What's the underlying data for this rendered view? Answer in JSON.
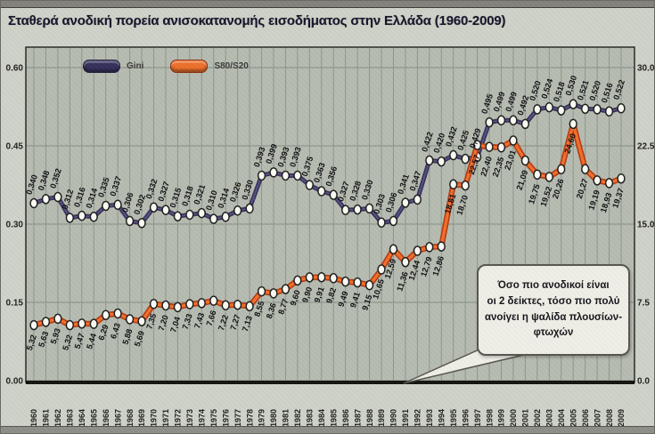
{
  "title": "Σταθερά ανοδική πορεία ανισοκατανομής εισοδήματος στην Ελλάδα (1960-2009)",
  "legend": {
    "gini_label": "Gini",
    "s80s20_label": "S80/S20"
  },
  "annotation": {
    "lines": {
      "0": "Όσο πιο ανοδικοί είναι",
      "1": "οι 2 δείκτες, τόσο πιο πολύ",
      "2": "ανοίγει η ψαλίδα πλουσίων-",
      "3": "φτωχών"
    }
  },
  "colors": {
    "page_bg": "#cfd2c8",
    "plot_bg": "#b6bcb0",
    "grid": "#8f968b",
    "frame": "#2a2a26",
    "gini_line": "#37335c",
    "gini_core": "#5b5488",
    "s80_line_edge": "#b83b12",
    "s80_line_core": "#f2702c",
    "marker_fill": "#fbfbf4",
    "marker_stroke": "#1e1e1e",
    "label_text": "#101014",
    "axis_text": "#22221f",
    "callout_tail": "#f0efe7"
  },
  "chart_data": {
    "type": "line",
    "title": "Σταθερά ανοδική πορεία ανισοκατανομής εισοδήματος στην Ελλάδα (1960-2009)",
    "grid": true,
    "legend_position": "top-left",
    "x": [
      1960,
      1961,
      1962,
      1963,
      1964,
      1965,
      1966,
      1967,
      1968,
      1969,
      1970,
      1971,
      1972,
      1973,
      1974,
      1975,
      1976,
      1977,
      1978,
      1979,
      1980,
      1981,
      1982,
      1983,
      1984,
      1985,
      1986,
      1987,
      1988,
      1989,
      1990,
      1991,
      1992,
      1993,
      1994,
      1995,
      1996,
      1997,
      1998,
      1999,
      2000,
      2001,
      2002,
      2003,
      2004,
      2005,
      2006,
      2007,
      2008,
      2009
    ],
    "left_axis": {
      "range": [
        0,
        0.6
      ],
      "ticks": [
        0.6,
        0.45,
        0.3,
        0.15,
        0.0
      ],
      "tick_labels": [
        "0.60",
        "0.45",
        "0.30",
        "0.15",
        "0.00"
      ]
    },
    "right_axis": {
      "range": [
        0,
        30
      ],
      "ticks": [
        30.0,
        22.5,
        15.0,
        7.5,
        0.0
      ],
      "tick_labels": [
        "30.0",
        "22.5",
        "15.0",
        "7.5",
        "0.0"
      ]
    },
    "series": [
      {
        "name": "Gini",
        "axis": "left",
        "values": [
          0.34,
          0.348,
          0.352,
          0.312,
          0.316,
          0.314,
          0.335,
          0.337,
          0.306,
          0.302,
          0.332,
          0.327,
          0.315,
          0.318,
          0.321,
          0.31,
          0.314,
          0.326,
          0.33,
          0.393,
          0.399,
          0.393,
          0.393,
          0.375,
          0.363,
          0.356,
          0.327,
          0.328,
          0.33,
          0.303,
          0.306,
          0.341,
          0.347,
          0.422,
          0.42,
          0.432,
          0.425,
          0.429,
          0.495,
          0.499,
          0.499,
          0.492,
          0.52,
          0.524,
          0.518,
          0.53,
          0.521,
          0.52,
          0.516,
          0.522
        ],
        "labels": [
          "0,340",
          "0,348",
          "0,352",
          "0,312",
          "0,316",
          "0,314",
          "0,335",
          "0,337",
          "0,306",
          "0,302",
          "0,332",
          "0,327",
          "0,315",
          "0,318",
          "0,321",
          "0,310",
          "0,314",
          "0,326",
          "0,330",
          "0,393",
          "0,399",
          "0,393",
          "0,393",
          "0,375",
          "0,363",
          "0,356",
          "0,327",
          "0,328",
          "0,330",
          "0,303",
          "0,306",
          "0,341",
          "0,347",
          "0,422",
          "0,420",
          "0,432",
          "0,425",
          "0,429",
          "0,495",
          "0,499",
          "0,499",
          "0,492",
          "0,520",
          "0,524",
          "0,518",
          "0,530",
          "0,521",
          "0,520",
          "0,516",
          "0,522"
        ]
      },
      {
        "name": "S80/S20",
        "axis": "right",
        "values": [
          5.32,
          5.63,
          5.93,
          5.32,
          5.47,
          5.44,
          6.29,
          6.43,
          5.88,
          5.69,
          7.35,
          7.2,
          7.04,
          7.33,
          7.43,
          7.66,
          7.22,
          7.27,
          7.13,
          8.55,
          8.36,
          8.77,
          9.6,
          9.9,
          9.91,
          9.82,
          9.49,
          9.41,
          9.15,
          10.65,
          12.59,
          11.36,
          12.44,
          12.79,
          12.86,
          18.81,
          18.7,
          22.57,
          22.4,
          22.35,
          23.01,
          21.09,
          19.75,
          19.52,
          20.26,
          24.6,
          20.27,
          19.19,
          18.93,
          19.37
        ],
        "labels": [
          "5,32",
          "5,63",
          "5,93",
          "5,32",
          "5,47",
          "5,44",
          "6,29",
          "6,43",
          "5,88",
          "5,69",
          "7,35",
          "7,20",
          "7,04",
          "7,33",
          "7,43",
          "7,66",
          "7,22",
          "7,27",
          "7,13",
          "8,55",
          "8,36",
          "8,77",
          "9,60",
          "9,90",
          "9,91",
          "9,82",
          "9,49",
          "9,41",
          "9,15",
          "10,65",
          "12,59",
          "11,36",
          "12,44",
          "12,79",
          "12,86",
          "18,81",
          "18,70",
          "22,57",
          "22,40",
          "22,35",
          "23,01",
          "21,09",
          "19,75",
          "19,52",
          "20,26",
          "24,60",
          "20,27",
          "19,19",
          "18,93",
          "19,37"
        ]
      }
    ]
  }
}
